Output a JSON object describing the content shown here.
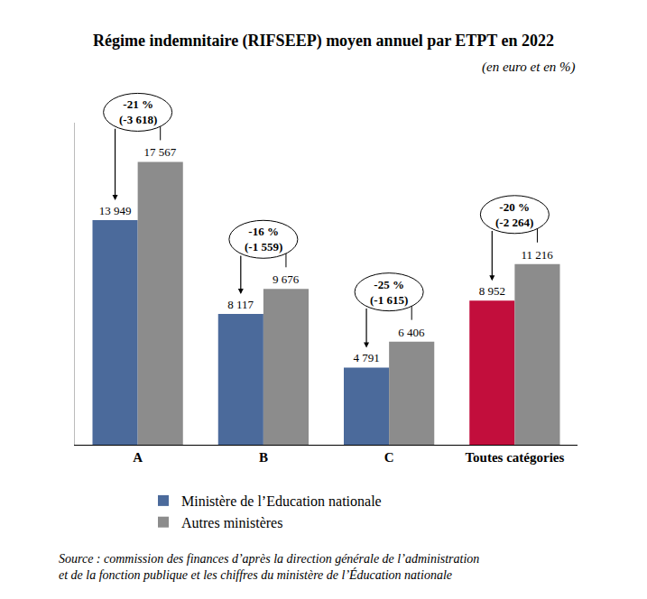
{
  "chart_data": {
    "type": "bar",
    "title": "Régime indemnitaire (RIFSEEP) moyen annuel par ETPT en 2022",
    "subtitle": "(en euro et en %)",
    "categories": [
      "A",
      "B",
      "C",
      "Toutes catégories"
    ],
    "series": [
      {
        "name": "Ministère de l’Education nationale",
        "colors": [
          "#4b6a9b",
          "#4b6a9b",
          "#4b6a9b",
          "#c20e3c"
        ],
        "values": [
          13949,
          8117,
          4791,
          8952
        ],
        "value_labels": [
          "13 949",
          "8 117",
          "4 791",
          "8 952"
        ]
      },
      {
        "name": "Autres ministères",
        "color": "#8c8c8c",
        "values": [
          17567,
          9676,
          6406,
          11216
        ],
        "value_labels": [
          "17 567",
          "9 676",
          "6 406",
          "11 216"
        ]
      }
    ],
    "differences": [
      {
        "percent_label": "-21 %",
        "value": -3618,
        "value_label": "(-3 618)"
      },
      {
        "percent_label": "-16 %",
        "value": -1559,
        "value_label": "(-1 559)"
      },
      {
        "percent_label": "-25 %",
        "value": -1615,
        "value_label": "(-1 615)"
      },
      {
        "percent_label": "-20 %",
        "value": -2264,
        "value_label": "(-2 264)"
      }
    ],
    "ylim": [
      0,
      20000
    ],
    "grid": false,
    "data_labels": true,
    "tick_labels": "x",
    "legend": "bottom",
    "source": [
      "Source : commission des finances d’après la direction générale de l’administration",
      "et de la fonction publique et les chiffres du ministère de l’Éducation nationale"
    ]
  }
}
